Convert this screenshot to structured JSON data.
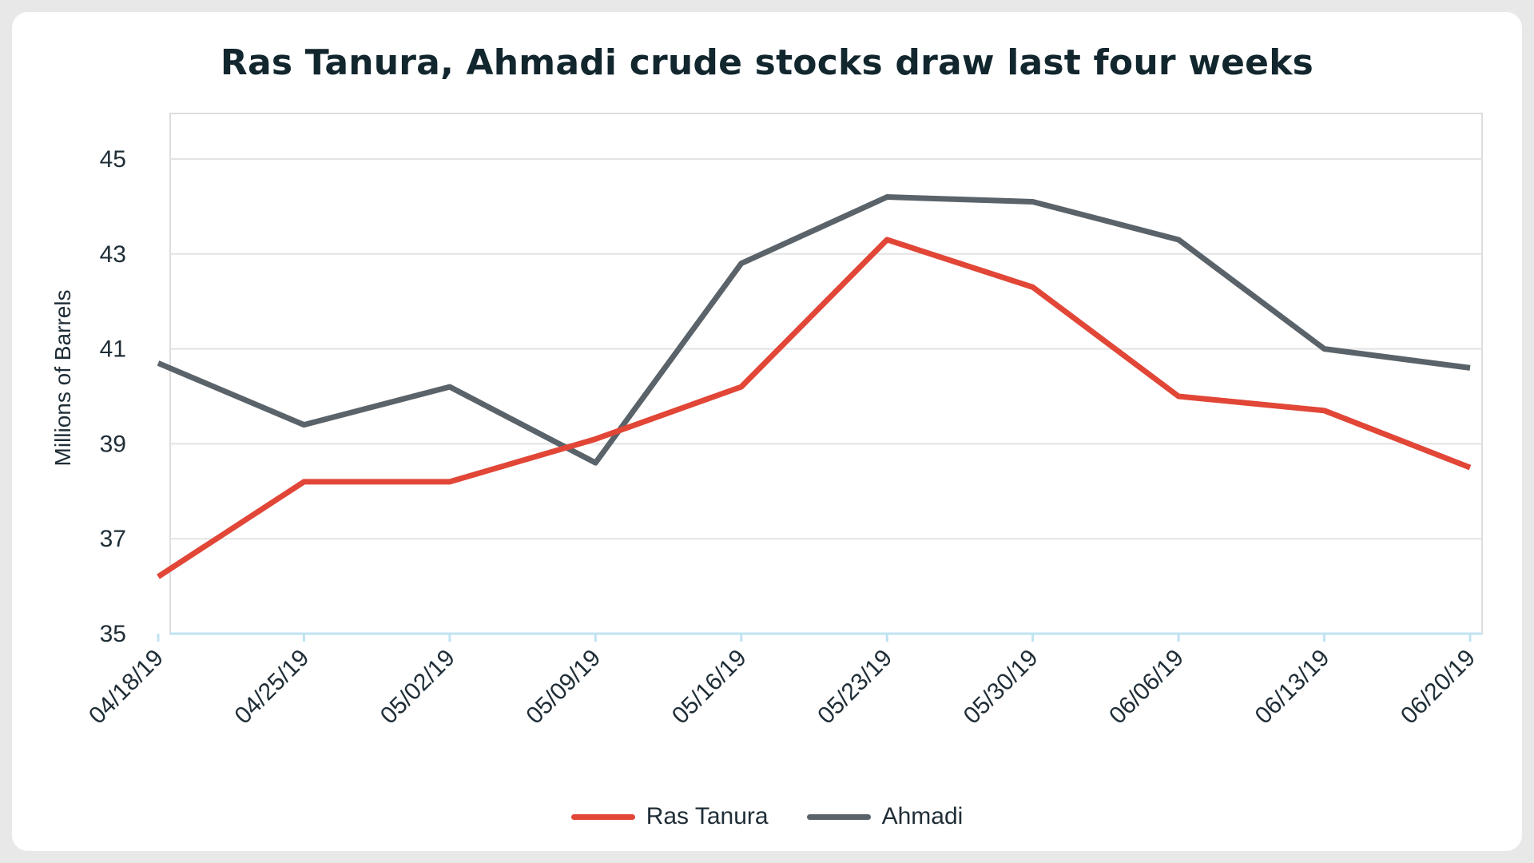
{
  "chart_data": {
    "type": "line",
    "title": "Ras Tanura, Ahmadi crude stocks draw last four weeks",
    "xlabel": "",
    "ylabel": "Millions of Barrels",
    "x": [
      "04/18/19",
      "04/25/19",
      "05/02/19",
      "05/09/19",
      "05/16/19",
      "05/23/19",
      "05/30/19",
      "06/06/19",
      "06/13/19",
      "06/20/19"
    ],
    "ylim": [
      35,
      46
    ],
    "yticks": [
      35,
      37,
      39,
      41,
      43,
      45
    ],
    "grid": true,
    "legend_position": "bottom",
    "series": [
      {
        "name": "Ras Tanura",
        "color": "#e14637",
        "values": [
          36.2,
          38.2,
          38.2,
          39.1,
          40.2,
          43.3,
          42.3,
          40.0,
          39.7,
          38.5
        ]
      },
      {
        "name": "Ahmadi",
        "color": "#5a6369",
        "values": [
          40.7,
          39.4,
          40.2,
          38.6,
          42.8,
          44.2,
          44.1,
          43.3,
          41.0,
          40.6
        ]
      }
    ]
  }
}
